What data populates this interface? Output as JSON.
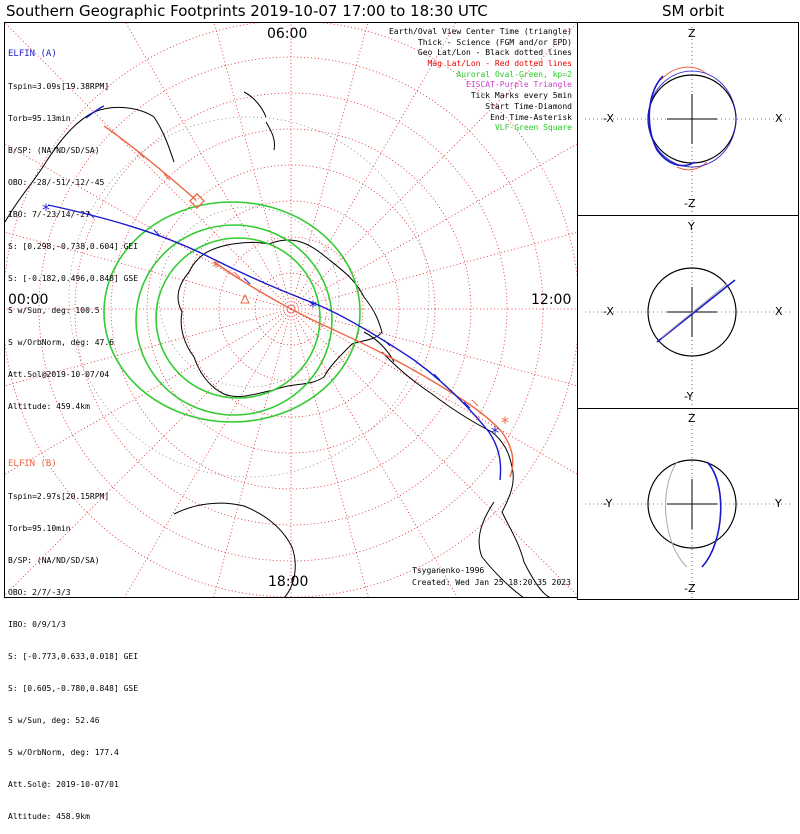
{
  "title": "Southern Geographic Footprints 2019-10-07 17:00 to 18:30 UTC",
  "sm_title": "SM orbit",
  "clock_labels": {
    "top": "06:00",
    "left": "00:00",
    "right": "12:00",
    "bottom": "18:00"
  },
  "elfin_a": {
    "color": "#1a1acc",
    "lines": [
      "ELFIN (A)",
      "Tspin=3.09s[19.38RPM]",
      "Torb=95.13min",
      "B/SP: (NA/ND/SD/SA)",
      "OBO: -28/-51/-12/-45",
      "IBO: 7/-23/14/-27",
      "S: [0.298,-0.738,0.604] GEI",
      "S: [-0.182,0.496,0.848] GSE",
      "S w/Sun, deg: 100.5",
      "S w/OrbNorm, deg: 47.6",
      "Att.Sol@2019-10-07/04",
      "Altitude: 459.4km"
    ]
  },
  "elfin_b": {
    "color": "#ee6644",
    "lines": [
      "ELFIN (B)",
      "Tspin=2.97s[20.15RPM]",
      "Torb=95.10min",
      "B/SP: (NA/ND/SD/SA)",
      "OBO: 2/7/-3/3",
      "IBO: 0/9/1/3",
      "S: [-0.773,0.633,0.018] GEI",
      "S: [0.605,-0.780,0.848] GSE",
      "S w/Sun, deg: 52.46",
      "S w/OrbNorm, deg: 177.4",
      "Att.Sol@: 2019-10-07/01",
      "Altitude: 458.9km"
    ]
  },
  "legend": [
    {
      "text": "Earth/Oval View Center Time (triangle)",
      "color": "#000000"
    },
    {
      "text": "Thick - Science (FGM and/or EPD)",
      "color": "#000000"
    },
    {
      "text": "Geo Lat/Lon - Black dotted lines",
      "color": "#000000"
    },
    {
      "text": "Mag Lat/Lon - Red dotted lines",
      "color": "#ee0000"
    },
    {
      "text": "Auroral Oval-Green, kp=2",
      "color": "#22cc22"
    },
    {
      "text": "EISCAT-Purple Triangle",
      "color": "#cc44cc"
    },
    {
      "text": "Tick Marks every 5min",
      "color": "#000000"
    },
    {
      "text": "Start Time-Diamond",
      "color": "#000000"
    },
    {
      "text": "End Time-Asterisk",
      "color": "#000000"
    },
    {
      "text": "VLF-Green Square",
      "color": "#22cc22"
    }
  ],
  "footer": {
    "credit": "Tsyganenko-1996",
    "created": "Created: Wed Jan 25 18:20:35 2023"
  },
  "sm_panels": [
    {
      "top": "Z",
      "bottom": "-Z",
      "left": "-X",
      "right": "X"
    },
    {
      "top": "Y",
      "bottom": "-Y",
      "left": "-X",
      "right": "X"
    },
    {
      "top": "Z",
      "bottom": "-Z",
      "left": "-Y",
      "right": "Y"
    }
  ],
  "colors": {
    "grid_mag": "#dd2222",
    "oval": "#33cc33",
    "orbit_a": "#1a1acc",
    "orbit_b": "#ee6644"
  }
}
